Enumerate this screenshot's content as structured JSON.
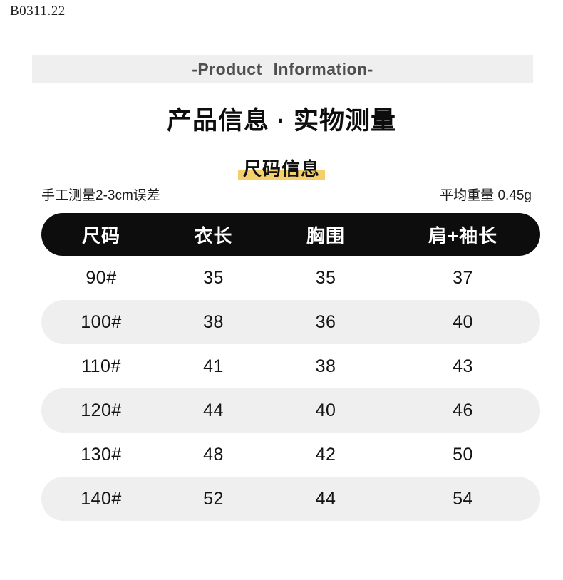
{
  "page": {
    "product_code": "B0311.22",
    "banner_title": "-Product Information-",
    "heading": "产品信息 · 实物测量",
    "section_title": "尺码信息",
    "note_left": "手工测量2-3cm误差",
    "note_right": "平均重量 0.45g"
  },
  "colors": {
    "banner_bg": "#efefef",
    "banner_text": "#4f4f4f",
    "highlight_yellow": "#f5cf6b",
    "table_header_bg": "#0d0d0d",
    "table_alt_row_bg": "#efefef",
    "text_primary": "#141414"
  },
  "size_table": {
    "columns": [
      "尺码",
      "衣长",
      "胸围",
      "肩+袖长"
    ],
    "rows": [
      [
        "90#",
        "35",
        "35",
        "37"
      ],
      [
        "100#",
        "38",
        "36",
        "40"
      ],
      [
        "110#",
        "41",
        "38",
        "43"
      ],
      [
        "120#",
        "44",
        "40",
        "46"
      ],
      [
        "130#",
        "48",
        "42",
        "50"
      ],
      [
        "140#",
        "52",
        "44",
        "54"
      ]
    ]
  }
}
